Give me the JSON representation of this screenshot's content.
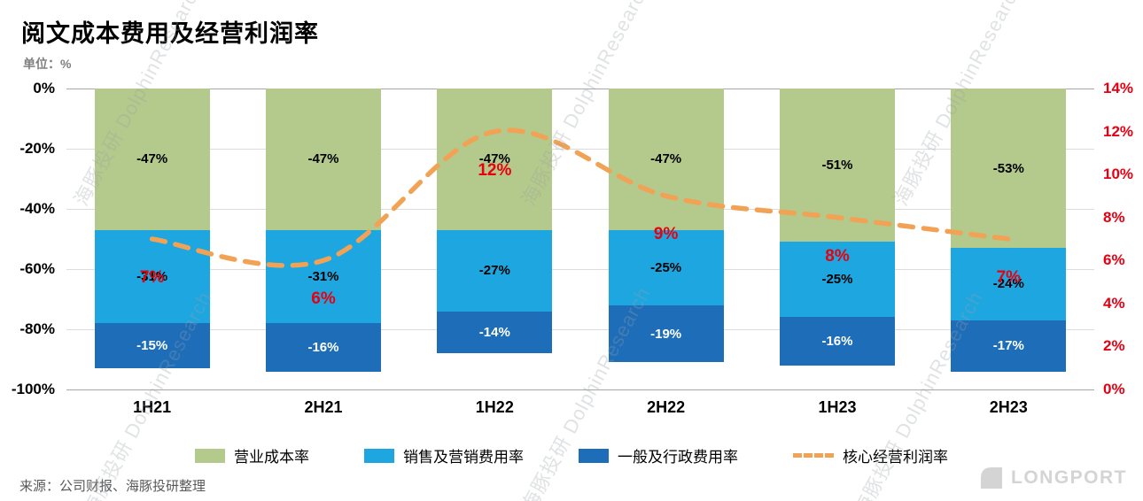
{
  "title": "阅文成本费用及经营利润率",
  "unit_label": "单位：%",
  "source": "来源：公司财报、海豚投研整理",
  "watermark_text": "海豚投研 DolphinResearch",
  "logo_text": "LONGPORT",
  "chart_data": {
    "type": "stacked-bar+line",
    "title": "阅文成本费用及经营利润率",
    "categories": [
      "1H21",
      "2H21",
      "1H22",
      "2H22",
      "1H23",
      "2H23"
    ],
    "bar_series": [
      {
        "name": "营业成本率",
        "color": "#b4c98c",
        "label_color": "#000000",
        "values": [
          -47,
          -47,
          -47,
          -47,
          -51,
          -53
        ]
      },
      {
        "name": "销售及营销费用率",
        "color": "#1ea6e0",
        "label_color": "#000000",
        "values": [
          -31,
          -31,
          -27,
          -25,
          -25,
          -24
        ]
      },
      {
        "name": "一般及行政费用率",
        "color": "#1e6db8",
        "label_color": "#ffffff",
        "values": [
          -15,
          -16,
          -14,
          -19,
          -16,
          -17
        ]
      }
    ],
    "line_series": {
      "name": "核心经营利润率",
      "color": "#f2a254",
      "label_color": "#e8000f",
      "values": [
        7,
        6,
        12,
        9,
        8,
        7
      ]
    },
    "left_axis": {
      "min": -100,
      "max": 0,
      "ticks": [
        "0%",
        "-20%",
        "-40%",
        "-60%",
        "-80%",
        "-100%"
      ]
    },
    "right_axis": {
      "min": 0,
      "max": 14,
      "ticks": [
        "14%",
        "12%",
        "10%",
        "8%",
        "6%",
        "4%",
        "2%",
        "0%"
      ],
      "color": "#e60012"
    },
    "legend_position": "bottom",
    "grid": true
  }
}
